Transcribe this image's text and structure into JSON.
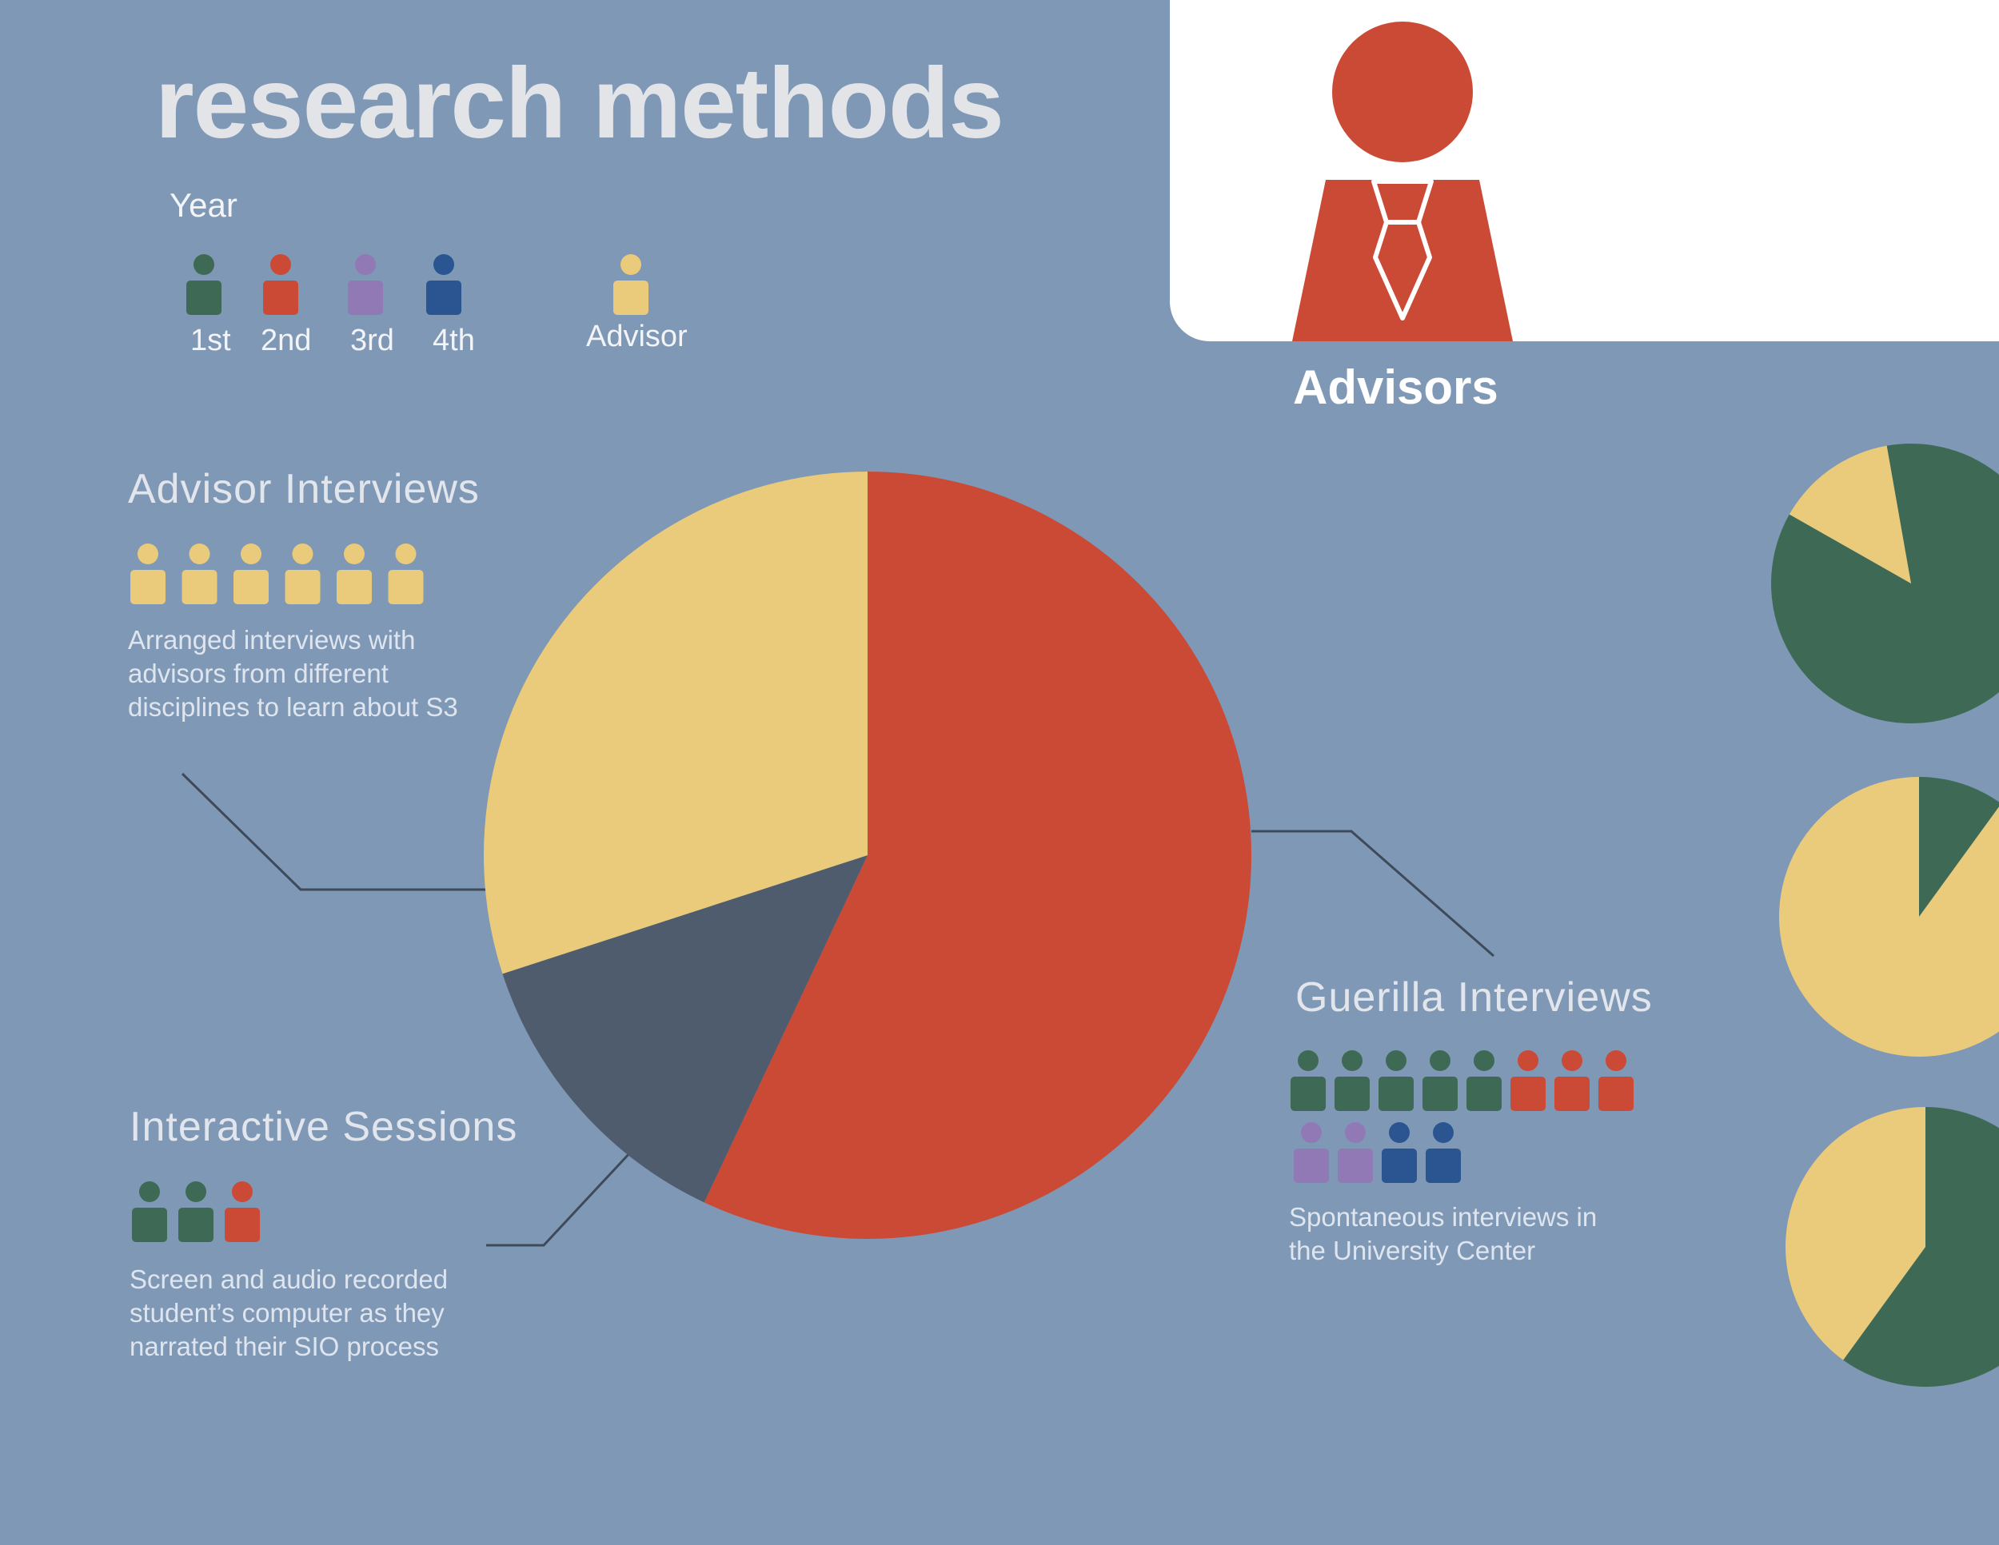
{
  "title": "research methods",
  "legend": {
    "year_label": "Year",
    "items": [
      {
        "label": "1st",
        "color": "#3e6a55"
      },
      {
        "label": "2nd",
        "color": "#cb4a35"
      },
      {
        "label": "3rd",
        "color": "#9079b5"
      },
      {
        "label": "4th",
        "color": "#2a5590"
      },
      {
        "label": "Advisor",
        "color": "#eaca7b"
      }
    ]
  },
  "sections": {
    "advisor_interviews": {
      "title": "Advisor Interviews",
      "description": "Arranged interviews with advisors from different disciplines to learn about S3",
      "icon_colors": [
        "#eaca7b",
        "#eaca7b",
        "#eaca7b",
        "#eaca7b",
        "#eaca7b",
        "#eaca7b"
      ]
    },
    "interactive_sessions": {
      "title": "Interactive Sessions",
      "description": "Screen and audio recorded student’s computer as they narrated their SIO process",
      "icon_colors": [
        "#3e6a55",
        "#3e6a55",
        "#cb4a35"
      ]
    },
    "guerilla_interviews": {
      "title": "Guerilla Interviews",
      "description": "Spontaneous interviews in the University Center",
      "icon_rows": [
        [
          "#3e6a55",
          "#3e6a55",
          "#3e6a55",
          "#3e6a55",
          "#3e6a55",
          "#cb4a35",
          "#cb4a35",
          "#cb4a35"
        ],
        [
          "#9079b5",
          "#9079b5",
          "#2a5590",
          "#2a5590"
        ]
      ]
    }
  },
  "advisors_panel": {
    "label": "Advisors",
    "color": "#cb4a35"
  },
  "chart_data": [
    {
      "type": "pie",
      "slices": [
        {
          "label": "Guerilla Interviews",
          "value": 57,
          "color": "#cb4a35"
        },
        {
          "label": "Interactive Sessions",
          "value": 13,
          "color": "#4f5c6d"
        },
        {
          "label": "Advisor Interviews",
          "value": 30,
          "color": "#eaca7b"
        }
      ]
    },
    {
      "type": "pie",
      "slices": [
        {
          "value": 86,
          "color": "#3e6a55"
        },
        {
          "value": 14,
          "color": "#eaca7b"
        }
      ]
    },
    {
      "type": "pie",
      "slices": [
        {
          "value": 10,
          "color": "#3e6a55"
        },
        {
          "value": 90,
          "color": "#eaca7b"
        }
      ]
    },
    {
      "type": "pie",
      "slices": [
        {
          "value": 60,
          "color": "#3e6a55"
        },
        {
          "value": 40,
          "color": "#eaca7b"
        }
      ]
    }
  ]
}
